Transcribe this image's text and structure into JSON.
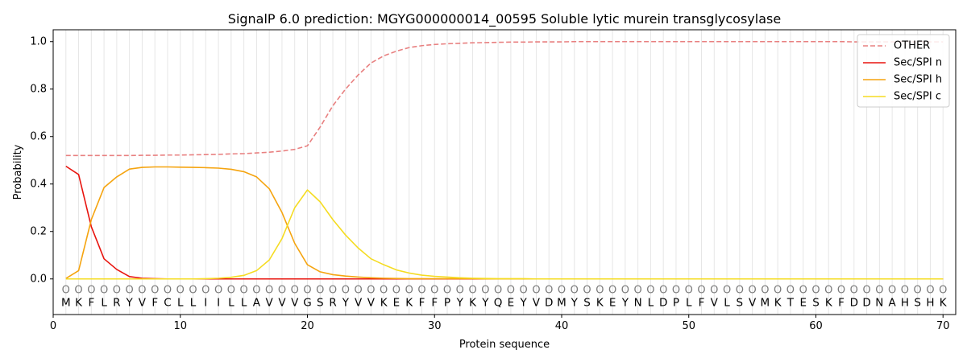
{
  "chart_data": {
    "type": "line",
    "title": "SignalP 6.0 prediction: MGYG000000014_00595 Soluble lytic murein transglycosylase",
    "xlabel": "Protein sequence",
    "ylabel": "Probability",
    "xlim": [
      0,
      71
    ],
    "ylim": [
      -0.15,
      1.05
    ],
    "x_ticks": [
      0,
      10,
      20,
      30,
      40,
      50,
      60,
      70
    ],
    "y_ticks": [
      0.0,
      0.2,
      0.4,
      0.6,
      0.8,
      1.0
    ],
    "x_tick_labels": [
      "0",
      "10",
      "20",
      "30",
      "40",
      "50",
      "60",
      "70"
    ],
    "y_tick_labels": [
      "0.0",
      "0.2",
      "0.4",
      "0.6",
      "0.8",
      "1.0"
    ],
    "grid": "vertical lines at every residue",
    "legend_position": "top-right",
    "sequence": [
      "M",
      "K",
      "F",
      "L",
      "R",
      "Y",
      "V",
      "F",
      "C",
      "L",
      "L",
      "I",
      "I",
      "L",
      "L",
      "A",
      "V",
      "V",
      "V",
      "G",
      "S",
      "R",
      "Y",
      "V",
      "V",
      "K",
      "E",
      "K",
      "F",
      "F",
      "P",
      "Y",
      "K",
      "Y",
      "Q",
      "E",
      "Y",
      "V",
      "D",
      "M",
      "Y",
      "S",
      "K",
      "E",
      "Y",
      "N",
      "L",
      "D",
      "P",
      "L",
      "F",
      "V",
      "L",
      "S",
      "V",
      "M",
      "K",
      "T",
      "E",
      "S",
      "K",
      "F",
      "D",
      "D",
      "N",
      "A",
      "H",
      "S",
      "H",
      "K"
    ],
    "position_marker": "O",
    "x": [
      1,
      2,
      3,
      4,
      5,
      6,
      7,
      8,
      9,
      10,
      11,
      12,
      13,
      14,
      15,
      16,
      17,
      18,
      19,
      20,
      21,
      22,
      23,
      24,
      25,
      26,
      27,
      28,
      29,
      30,
      31,
      32,
      33,
      34,
      35,
      36,
      37,
      38,
      39,
      40,
      41,
      42,
      43,
      44,
      45,
      46,
      47,
      48,
      49,
      50,
      51,
      52,
      53,
      54,
      55,
      56,
      57,
      58,
      59,
      60,
      61,
      62,
      63,
      64,
      65,
      66,
      67,
      68,
      69,
      70
    ],
    "series": [
      {
        "name": "OTHER",
        "color": "#e88080",
        "dash": "dashed",
        "values": [
          0.52,
          0.52,
          0.52,
          0.52,
          0.52,
          0.52,
          0.521,
          0.521,
          0.522,
          0.522,
          0.523,
          0.524,
          0.525,
          0.527,
          0.528,
          0.531,
          0.534,
          0.539,
          0.546,
          0.561,
          0.64,
          0.73,
          0.8,
          0.86,
          0.91,
          0.94,
          0.96,
          0.975,
          0.983,
          0.988,
          0.991,
          0.993,
          0.995,
          0.996,
          0.997,
          0.998,
          0.998,
          0.999,
          0.999,
          0.999,
          1.0,
          1.0,
          1.0,
          1.0,
          1.0,
          1.0,
          1.0,
          1.0,
          1.0,
          1.0,
          1.0,
          1.0,
          1.0,
          1.0,
          1.0,
          1.0,
          1.0,
          1.0,
          1.0,
          1.0,
          1.0,
          1.0,
          0.999,
          0.999,
          0.999,
          0.999,
          0.999,
          0.999,
          0.999,
          0.999
        ]
      },
      {
        "name": "Sec/SPI n",
        "color": "#e8140e",
        "dash": "solid",
        "values": [
          0.475,
          0.44,
          0.22,
          0.085,
          0.04,
          0.01,
          0.003,
          0.001,
          0,
          0,
          0,
          0,
          0,
          0,
          0,
          0,
          0,
          0,
          0,
          0,
          0,
          0,
          0,
          0,
          0,
          0,
          0,
          0,
          0,
          0,
          0,
          0,
          0,
          0,
          0,
          0,
          0,
          0,
          0,
          0,
          0,
          0,
          0,
          0,
          0,
          0,
          0,
          0,
          0,
          0,
          0,
          0,
          0,
          0,
          0,
          0,
          0,
          0,
          0,
          0,
          0,
          0,
          0,
          0,
          0,
          0,
          0,
          0,
          0,
          0
        ]
      },
      {
        "name": "Sec/SPI h",
        "color": "#f5a40f",
        "dash": "solid",
        "values": [
          0.002,
          0.035,
          0.25,
          0.385,
          0.43,
          0.463,
          0.47,
          0.472,
          0.472,
          0.471,
          0.47,
          0.469,
          0.467,
          0.462,
          0.452,
          0.43,
          0.38,
          0.28,
          0.15,
          0.06,
          0.03,
          0.018,
          0.012,
          0.008,
          0.005,
          0.003,
          0.002,
          0.001,
          0.001,
          0.001,
          0.001,
          0.001,
          0.001,
          0,
          0,
          0,
          0,
          0,
          0,
          0,
          0,
          0,
          0,
          0,
          0,
          0,
          0,
          0,
          0,
          0,
          0,
          0,
          0,
          0,
          0,
          0,
          0,
          0,
          0,
          0,
          0,
          0,
          0,
          0,
          0,
          0,
          0,
          0,
          0,
          0
        ]
      },
      {
        "name": "Sec/SPI c",
        "color": "#f5dc22",
        "dash": "solid",
        "values": [
          0,
          0,
          0,
          0,
          0,
          0,
          0,
          0,
          0,
          0,
          0,
          0.001,
          0.003,
          0.007,
          0.015,
          0.035,
          0.08,
          0.17,
          0.3,
          0.375,
          0.325,
          0.25,
          0.185,
          0.13,
          0.085,
          0.06,
          0.038,
          0.025,
          0.016,
          0.011,
          0.008,
          0.005,
          0.003,
          0.002,
          0.001,
          0.001,
          0.001,
          0,
          0,
          0,
          0,
          0,
          0,
          0,
          0,
          0,
          0,
          0,
          0,
          0,
          0,
          0,
          0,
          0,
          0,
          0,
          0,
          0,
          0,
          0,
          0,
          0,
          0,
          0,
          0,
          0,
          0,
          0,
          0,
          0
        ]
      }
    ]
  }
}
